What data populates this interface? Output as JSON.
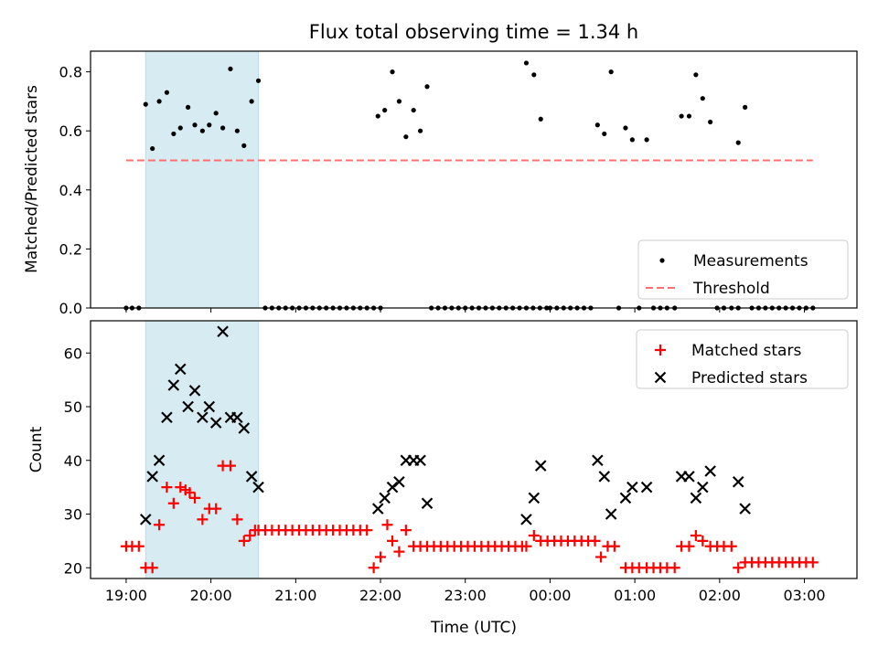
{
  "figure": {
    "title": "Flux total observing time = 1.34 h"
  },
  "chart_data": [
    {
      "type": "scatter",
      "title": "Flux total observing time = 1.34 h",
      "xlabel": "",
      "ylabel": "Matched/Predicted stars",
      "x_unit": "hours after 19:00 UTC",
      "xlim": [
        -0.42,
        8.62
      ],
      "ylim": [
        0.0,
        0.87
      ],
      "yticks": [
        0.0,
        0.2,
        0.4,
        0.6,
        0.8
      ],
      "ytick_labels": [
        "0.0",
        "0.2",
        "0.4",
        "0.6",
        "0.8"
      ],
      "highlight_span": [
        0.23,
        1.56
      ],
      "highlight_color": "#add8e6",
      "legend": {
        "placement": "lower-right",
        "entries": [
          "Measurements",
          "Threshold"
        ]
      },
      "threshold": {
        "name": "Threshold",
        "y": 0.5,
        "x_range": [
          0.0,
          8.1
        ],
        "color": "#ff7070",
        "style": "dashed"
      },
      "series": [
        {
          "name": "Measurements",
          "color": "#000000",
          "marker": "dot",
          "points": [
            [
              0.0,
              0
            ],
            [
              0.07,
              0
            ],
            [
              0.15,
              0
            ],
            [
              0.23,
              0.69
            ],
            [
              0.31,
              0.54
            ],
            [
              0.39,
              0.7
            ],
            [
              0.48,
              0.73
            ],
            [
              0.56,
              0.59
            ],
            [
              0.64,
              0.61
            ],
            [
              0.73,
              0.68
            ],
            [
              0.81,
              0.62
            ],
            [
              0.9,
              0.6
            ],
            [
              0.98,
              0.62
            ],
            [
              1.06,
              0.66
            ],
            [
              1.14,
              0.61
            ],
            [
              1.23,
              0.81
            ],
            [
              1.31,
              0.6
            ],
            [
              1.39,
              0.55
            ],
            [
              1.48,
              0.7
            ],
            [
              1.56,
              0.77
            ],
            [
              1.64,
              0
            ],
            [
              1.72,
              0
            ],
            [
              1.8,
              0
            ],
            [
              1.88,
              0
            ],
            [
              1.96,
              0
            ],
            [
              2.04,
              0
            ],
            [
              2.12,
              0
            ],
            [
              2.2,
              0
            ],
            [
              2.28,
              0
            ],
            [
              2.36,
              0
            ],
            [
              2.44,
              0
            ],
            [
              2.52,
              0
            ],
            [
              2.6,
              0
            ],
            [
              2.68,
              0
            ],
            [
              2.76,
              0
            ],
            [
              2.84,
              0
            ],
            [
              2.92,
              0
            ],
            [
              3.0,
              0
            ],
            [
              2.97,
              0.65
            ],
            [
              3.05,
              0.67
            ],
            [
              3.14,
              0.8
            ],
            [
              3.22,
              0.7
            ],
            [
              3.3,
              0.58
            ],
            [
              3.39,
              0.67
            ],
            [
              3.47,
              0.6
            ],
            [
              3.55,
              0.75
            ],
            [
              3.6,
              0
            ],
            [
              3.68,
              0
            ],
            [
              3.76,
              0
            ],
            [
              3.84,
              0
            ],
            [
              3.92,
              0
            ],
            [
              4.0,
              0
            ],
            [
              4.08,
              0
            ],
            [
              4.16,
              0
            ],
            [
              4.24,
              0
            ],
            [
              4.32,
              0
            ],
            [
              4.4,
              0
            ],
            [
              4.48,
              0
            ],
            [
              4.56,
              0
            ],
            [
              4.64,
              0
            ],
            [
              4.72,
              0
            ],
            [
              4.8,
              0
            ],
            [
              4.88,
              0
            ],
            [
              4.96,
              0
            ],
            [
              4.72,
              0.83
            ],
            [
              4.81,
              0.79
            ],
            [
              4.89,
              0.64
            ],
            [
              5.0,
              0
            ],
            [
              5.08,
              0
            ],
            [
              5.16,
              0
            ],
            [
              5.24,
              0
            ],
            [
              5.32,
              0
            ],
            [
              5.4,
              0
            ],
            [
              5.48,
              0
            ],
            [
              5.56,
              0.62
            ],
            [
              5.64,
              0.59
            ],
            [
              5.72,
              0.8
            ],
            [
              5.81,
              0
            ],
            [
              5.89,
              0.61
            ],
            [
              5.97,
              0.57
            ],
            [
              6.05,
              0
            ],
            [
              6.14,
              0.57
            ],
            [
              6.22,
              0
            ],
            [
              6.3,
              0
            ],
            [
              6.38,
              0
            ],
            [
              6.47,
              0
            ],
            [
              6.55,
              0.65
            ],
            [
              6.64,
              0.65
            ],
            [
              6.72,
              0.79
            ],
            [
              6.8,
              0.71
            ],
            [
              6.89,
              0.63
            ],
            [
              6.97,
              0
            ],
            [
              7.05,
              0
            ],
            [
              7.14,
              0
            ],
            [
              7.22,
              0
            ],
            [
              7.22,
              0.56
            ],
            [
              7.3,
              0.68
            ],
            [
              7.38,
              0
            ],
            [
              7.46,
              0
            ],
            [
              7.54,
              0
            ],
            [
              7.62,
              0
            ],
            [
              7.7,
              0
            ],
            [
              7.78,
              0
            ],
            [
              7.86,
              0
            ],
            [
              7.94,
              0
            ],
            [
              8.02,
              0
            ],
            [
              8.1,
              0
            ]
          ]
        }
      ]
    },
    {
      "type": "scatter",
      "title": "",
      "xlabel": "Time (UTC)",
      "ylabel": "Count",
      "x_unit": "hours after 19:00 UTC",
      "xlim": [
        -0.42,
        8.62
      ],
      "ylim": [
        18,
        66
      ],
      "yticks": [
        20,
        30,
        40,
        50,
        60
      ],
      "ytick_labels": [
        "20",
        "30",
        "40",
        "50",
        "60"
      ],
      "xticks": [
        0,
        1,
        2,
        3,
        4,
        5,
        6,
        7,
        8
      ],
      "xtick_labels": [
        "19:00",
        "20:00",
        "21:00",
        "22:00",
        "23:00",
        "00:00",
        "01:00",
        "02:00",
        "03:00"
      ],
      "highlight_span": [
        0.23,
        1.56
      ],
      "highlight_color": "#add8e6",
      "legend": {
        "placement": "top-right",
        "entries": [
          "Matched stars",
          "Predicted stars"
        ]
      },
      "series": [
        {
          "name": "Matched stars",
          "color": "#ff0000",
          "marker": "plus",
          "points": [
            [
              0.0,
              24
            ],
            [
              0.07,
              24
            ],
            [
              0.15,
              24
            ],
            [
              0.23,
              20
            ],
            [
              0.31,
              20
            ],
            [
              0.39,
              28
            ],
            [
              0.48,
              35
            ],
            [
              0.56,
              32
            ],
            [
              0.64,
              35
            ],
            [
              0.7,
              34.5
            ],
            [
              0.75,
              34
            ],
            [
              0.81,
              33
            ],
            [
              0.9,
              29
            ],
            [
              0.98,
              31
            ],
            [
              1.06,
              31
            ],
            [
              1.14,
              39
            ],
            [
              1.23,
              39
            ],
            [
              1.31,
              29
            ],
            [
              1.39,
              25
            ],
            [
              1.46,
              26
            ],
            [
              1.52,
              27
            ],
            [
              1.56,
              27
            ],
            [
              1.64,
              27
            ],
            [
              1.72,
              27
            ],
            [
              1.8,
              27
            ],
            [
              1.88,
              27
            ],
            [
              1.96,
              27
            ],
            [
              2.04,
              27
            ],
            [
              2.12,
              27
            ],
            [
              2.2,
              27
            ],
            [
              2.28,
              27
            ],
            [
              2.36,
              27
            ],
            [
              2.44,
              27
            ],
            [
              2.52,
              27
            ],
            [
              2.6,
              27
            ],
            [
              2.68,
              27
            ],
            [
              2.76,
              27
            ],
            [
              2.84,
              27
            ],
            [
              2.92,
              20
            ],
            [
              3.0,
              22
            ],
            [
              3.08,
              28
            ],
            [
              3.14,
              25
            ],
            [
              3.22,
              23
            ],
            [
              3.3,
              27
            ],
            [
              3.39,
              24
            ],
            [
              3.47,
              24
            ],
            [
              3.55,
              24
            ],
            [
              3.63,
              24
            ],
            [
              3.71,
              24
            ],
            [
              3.79,
              24
            ],
            [
              3.87,
              24
            ],
            [
              3.95,
              24
            ],
            [
              4.03,
              24
            ],
            [
              4.11,
              24
            ],
            [
              4.19,
              24
            ],
            [
              4.27,
              24
            ],
            [
              4.35,
              24
            ],
            [
              4.43,
              24
            ],
            [
              4.51,
              24
            ],
            [
              4.59,
              24
            ],
            [
              4.67,
              24
            ],
            [
              4.72,
              24
            ],
            [
              4.81,
              26
            ],
            [
              4.89,
              25
            ],
            [
              4.97,
              25
            ],
            [
              5.05,
              25
            ],
            [
              5.13,
              25
            ],
            [
              5.21,
              25
            ],
            [
              5.29,
              25
            ],
            [
              5.37,
              25
            ],
            [
              5.45,
              25
            ],
            [
              5.53,
              25
            ],
            [
              5.6,
              22
            ],
            [
              5.68,
              24
            ],
            [
              5.76,
              24
            ],
            [
              5.89,
              20
            ],
            [
              5.97,
              20
            ],
            [
              6.05,
              20
            ],
            [
              6.14,
              20
            ],
            [
              6.22,
              20
            ],
            [
              6.3,
              20
            ],
            [
              6.38,
              20
            ],
            [
              6.47,
              20
            ],
            [
              6.55,
              24
            ],
            [
              6.64,
              24
            ],
            [
              6.72,
              26
            ],
            [
              6.8,
              25
            ],
            [
              6.89,
              24
            ],
            [
              6.97,
              24
            ],
            [
              7.05,
              24
            ],
            [
              7.14,
              24
            ],
            [
              7.22,
              20
            ],
            [
              7.3,
              21
            ],
            [
              7.38,
              21
            ],
            [
              7.46,
              21
            ],
            [
              7.54,
              21
            ],
            [
              7.62,
              21
            ],
            [
              7.7,
              21
            ],
            [
              7.78,
              21
            ],
            [
              7.86,
              21
            ],
            [
              7.94,
              21
            ],
            [
              8.02,
              21
            ],
            [
              8.1,
              21
            ]
          ]
        },
        {
          "name": "Predicted stars",
          "color": "#000000",
          "marker": "x",
          "points": [
            [
              0.23,
              29
            ],
            [
              0.31,
              37
            ],
            [
              0.39,
              40
            ],
            [
              0.48,
              48
            ],
            [
              0.56,
              54
            ],
            [
              0.64,
              57
            ],
            [
              0.73,
              50
            ],
            [
              0.81,
              53
            ],
            [
              0.9,
              48
            ],
            [
              0.98,
              50
            ],
            [
              1.06,
              47
            ],
            [
              1.14,
              64
            ],
            [
              1.23,
              48
            ],
            [
              1.31,
              48
            ],
            [
              1.39,
              46
            ],
            [
              1.48,
              37
            ],
            [
              1.56,
              35
            ],
            [
              2.97,
              31
            ],
            [
              3.05,
              33
            ],
            [
              3.14,
              35
            ],
            [
              3.22,
              36
            ],
            [
              3.3,
              40
            ],
            [
              3.39,
              40
            ],
            [
              3.47,
              40
            ],
            [
              3.55,
              32
            ],
            [
              4.72,
              29
            ],
            [
              4.81,
              33
            ],
            [
              4.89,
              39
            ],
            [
              5.56,
              40
            ],
            [
              5.64,
              37
            ],
            [
              5.72,
              30
            ],
            [
              5.89,
              33
            ],
            [
              5.97,
              35
            ],
            [
              6.14,
              35
            ],
            [
              6.55,
              37
            ],
            [
              6.64,
              37
            ],
            [
              6.72,
              33
            ],
            [
              6.8,
              35
            ],
            [
              6.89,
              38
            ],
            [
              7.22,
              36
            ],
            [
              7.3,
              31
            ]
          ]
        }
      ]
    }
  ]
}
